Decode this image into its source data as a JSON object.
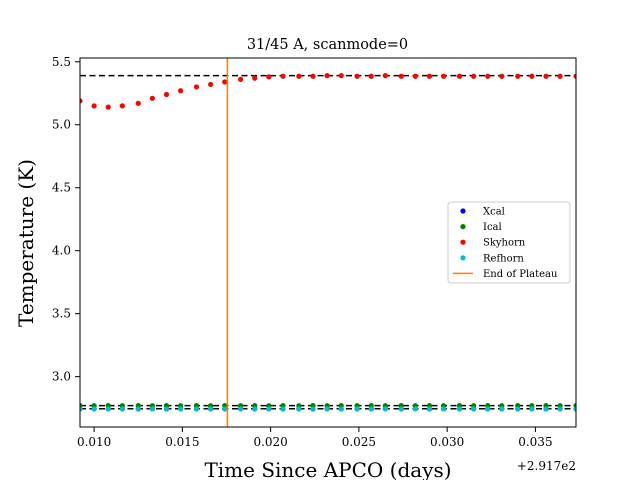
{
  "chart_data": {
    "type": "scatter",
    "title": "31/45 A, scanmode=0",
    "xlabel": "Time Since APCO (days)",
    "ylabel": "Temperature (K)",
    "x_offset_label": "+2.917e2",
    "xlim": [
      291.7092,
      291.7373
    ],
    "ylim": [
      2.6,
      5.53
    ],
    "x_ticks": [
      291.71,
      291.715,
      291.72,
      291.725,
      291.73,
      291.735
    ],
    "x_tick_labels": [
      "0.010",
      "0.015",
      "0.020",
      "0.025",
      "0.030",
      "0.035"
    ],
    "y_ticks": [
      3.0,
      3.5,
      4.0,
      4.5,
      5.0,
      5.5
    ],
    "y_tick_labels": [
      "3.0",
      "3.5",
      "4.0",
      "4.5",
      "5.0",
      "5.5"
    ],
    "grid": false,
    "legend_position": "center-right",
    "reference_lines": [
      {
        "type": "hline",
        "y": 5.39,
        "style": "dashed",
        "color": "#000000"
      },
      {
        "type": "hline",
        "y": 2.77,
        "style": "dashed",
        "color": "#000000"
      },
      {
        "type": "hline",
        "y": 2.745,
        "style": "dashed",
        "color": "#000000"
      }
    ],
    "series": [
      {
        "name": "Xcal",
        "kind": "points",
        "color": "#0000ff",
        "x": [
          291.7092,
          291.71,
          291.7108,
          291.7116,
          291.7125,
          291.7133,
          291.7141,
          291.7149,
          291.7158,
          291.7166,
          291.7174,
          291.7183,
          291.7191,
          291.7199,
          291.7207,
          291.7216,
          291.7224,
          291.7232,
          291.724,
          291.7249,
          291.7257,
          291.7265,
          291.7274,
          291.7282,
          291.729,
          291.7298,
          291.7307,
          291.7315,
          291.7323,
          291.7331,
          291.734,
          291.7348,
          291.7356,
          291.7364,
          291.7373
        ],
        "y": [
          2.744,
          2.745,
          2.744,
          2.745,
          2.744,
          2.745,
          2.744,
          2.745,
          2.744,
          2.745,
          2.744,
          2.745,
          2.744,
          2.745,
          2.744,
          2.745,
          2.744,
          2.745,
          2.744,
          2.745,
          2.744,
          2.745,
          2.744,
          2.745,
          2.744,
          2.745,
          2.744,
          2.745,
          2.744,
          2.745,
          2.744,
          2.745,
          2.744,
          2.745,
          2.744
        ]
      },
      {
        "name": "Ical",
        "kind": "points",
        "color": "#008000",
        "x": [
          291.7092,
          291.71,
          291.7108,
          291.7116,
          291.7125,
          291.7133,
          291.7141,
          291.7149,
          291.7158,
          291.7166,
          291.7174,
          291.7183,
          291.7191,
          291.7199,
          291.7207,
          291.7216,
          291.7224,
          291.7232,
          291.724,
          291.7249,
          291.7257,
          291.7265,
          291.7274,
          291.7282,
          291.729,
          291.7298,
          291.7307,
          291.7315,
          291.7323,
          291.7331,
          291.734,
          291.7348,
          291.7356,
          291.7364,
          291.7373
        ],
        "y": [
          2.77,
          2.769,
          2.77,
          2.769,
          2.77,
          2.769,
          2.77,
          2.769,
          2.77,
          2.769,
          2.77,
          2.769,
          2.77,
          2.769,
          2.77,
          2.769,
          2.77,
          2.769,
          2.77,
          2.769,
          2.77,
          2.769,
          2.77,
          2.769,
          2.77,
          2.769,
          2.77,
          2.769,
          2.77,
          2.769,
          2.77,
          2.769,
          2.77,
          2.769,
          2.77
        ]
      },
      {
        "name": "Skyhorn",
        "kind": "points",
        "color": "#ff0000",
        "x": [
          291.7092,
          291.71,
          291.7108,
          291.7116,
          291.7125,
          291.7133,
          291.7141,
          291.7149,
          291.7158,
          291.7166,
          291.7174,
          291.7183,
          291.7191,
          291.7199,
          291.7207,
          291.7216,
          291.7224,
          291.7232,
          291.724,
          291.7249,
          291.7257,
          291.7265,
          291.7274,
          291.7282,
          291.729,
          291.7298,
          291.7307,
          291.7315,
          291.7323,
          291.7331,
          291.734,
          291.7348,
          291.7356,
          291.7364,
          291.7373
        ],
        "y": [
          5.19,
          5.15,
          5.14,
          5.15,
          5.17,
          5.21,
          5.24,
          5.27,
          5.3,
          5.32,
          5.34,
          5.36,
          5.37,
          5.38,
          5.385,
          5.385,
          5.385,
          5.39,
          5.39,
          5.385,
          5.385,
          5.39,
          5.385,
          5.385,
          5.385,
          5.385,
          5.385,
          5.385,
          5.385,
          5.385,
          5.385,
          5.385,
          5.385,
          5.385,
          5.385
        ]
      },
      {
        "name": "Refhorn",
        "kind": "points",
        "color": "#00bfbf",
        "x": [
          291.7092,
          291.71,
          291.7108,
          291.7116,
          291.7125,
          291.7133,
          291.7141,
          291.7149,
          291.7158,
          291.7166,
          291.7174,
          291.7183,
          291.7191,
          291.7199,
          291.7207,
          291.7216,
          291.7224,
          291.7232,
          291.724,
          291.7249,
          291.7257,
          291.7265,
          291.7274,
          291.7282,
          291.729,
          291.7298,
          291.7307,
          291.7315,
          291.7323,
          291.7331,
          291.734,
          291.7348,
          291.7356,
          291.7364,
          291.7373
        ],
        "y": [
          2.743,
          2.744,
          2.743,
          2.744,
          2.743,
          2.744,
          2.743,
          2.744,
          2.743,
          2.744,
          2.743,
          2.744,
          2.743,
          2.744,
          2.743,
          2.744,
          2.743,
          2.744,
          2.743,
          2.744,
          2.743,
          2.744,
          2.743,
          2.744,
          2.743,
          2.744,
          2.743,
          2.744,
          2.743,
          2.744,
          2.743,
          2.744,
          2.743,
          2.744,
          2.743
        ]
      },
      {
        "name": "End of Plateau",
        "kind": "vline",
        "color": "#ff7f0e",
        "x": 291.71755
      }
    ]
  }
}
